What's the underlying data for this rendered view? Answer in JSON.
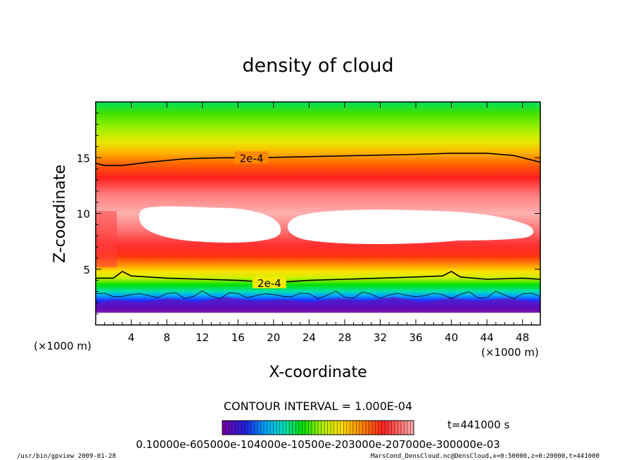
{
  "chart_data": {
    "type": "contour",
    "title": "density of cloud",
    "xlabel": "X-coordinate",
    "ylabel": "Z-coordinate",
    "x_unit": "(×1000 m)",
    "y_unit": "(×1000 m)",
    "xlim": [
      0,
      50
    ],
    "ylim": [
      0,
      20
    ],
    "xticks": [
      4,
      8,
      12,
      16,
      20,
      24,
      28,
      32,
      36,
      40,
      44,
      48
    ],
    "yticks": [
      5,
      10,
      15
    ],
    "contour_lines": [
      {
        "label": "2e-4",
        "points": [
          [
            0,
            14.5
          ],
          [
            1,
            14.3
          ],
          [
            3,
            14.3
          ],
          [
            6,
            14.6
          ],
          [
            10,
            14.9
          ],
          [
            14,
            15.0
          ],
          [
            18,
            15.0
          ],
          [
            24,
            15.1
          ],
          [
            30,
            15.2
          ],
          [
            36,
            15.3
          ],
          [
            40,
            15.4
          ],
          [
            44,
            15.4
          ],
          [
            47,
            15.2
          ],
          [
            50,
            14.6
          ]
        ]
      },
      {
        "label": "2e-4",
        "points": [
          [
            0,
            4.2
          ],
          [
            2,
            4.2
          ],
          [
            3,
            4.8
          ],
          [
            4,
            4.4
          ],
          [
            8,
            4.2
          ],
          [
            12,
            4.1
          ],
          [
            16,
            4.0
          ],
          [
            20,
            3.8
          ],
          [
            24,
            4.0
          ],
          [
            28,
            4.1
          ],
          [
            32,
            4.2
          ],
          [
            36,
            4.3
          ],
          [
            39,
            4.4
          ],
          [
            40,
            4.8
          ],
          [
            41,
            4.3
          ],
          [
            44,
            4.1
          ],
          [
            48,
            4.2
          ],
          [
            50,
            4.1
          ]
        ]
      }
    ],
    "contour_interval_text": "CONTOUR INTERVAL = 1.000E-04",
    "colorbar": {
      "tick_text": "0.10000e-605000e-104000e-10500e-203000e-207000e-300000e-03",
      "colors": [
        "#7a00a8",
        "#2020e0",
        "#00a0ff",
        "#00e0c0",
        "#00e000",
        "#b0f000",
        "#ffe000",
        "#ff9000",
        "#ff2020",
        "#ffb0b0"
      ]
    },
    "time_text": "t=441000 s"
  },
  "footer": {
    "left": "/usr/bin/gpview  2009-01-28",
    "right": "MarsCond_DensCloud.nc@DensCloud,x=0:50000,z=0:20000,t=441000"
  }
}
